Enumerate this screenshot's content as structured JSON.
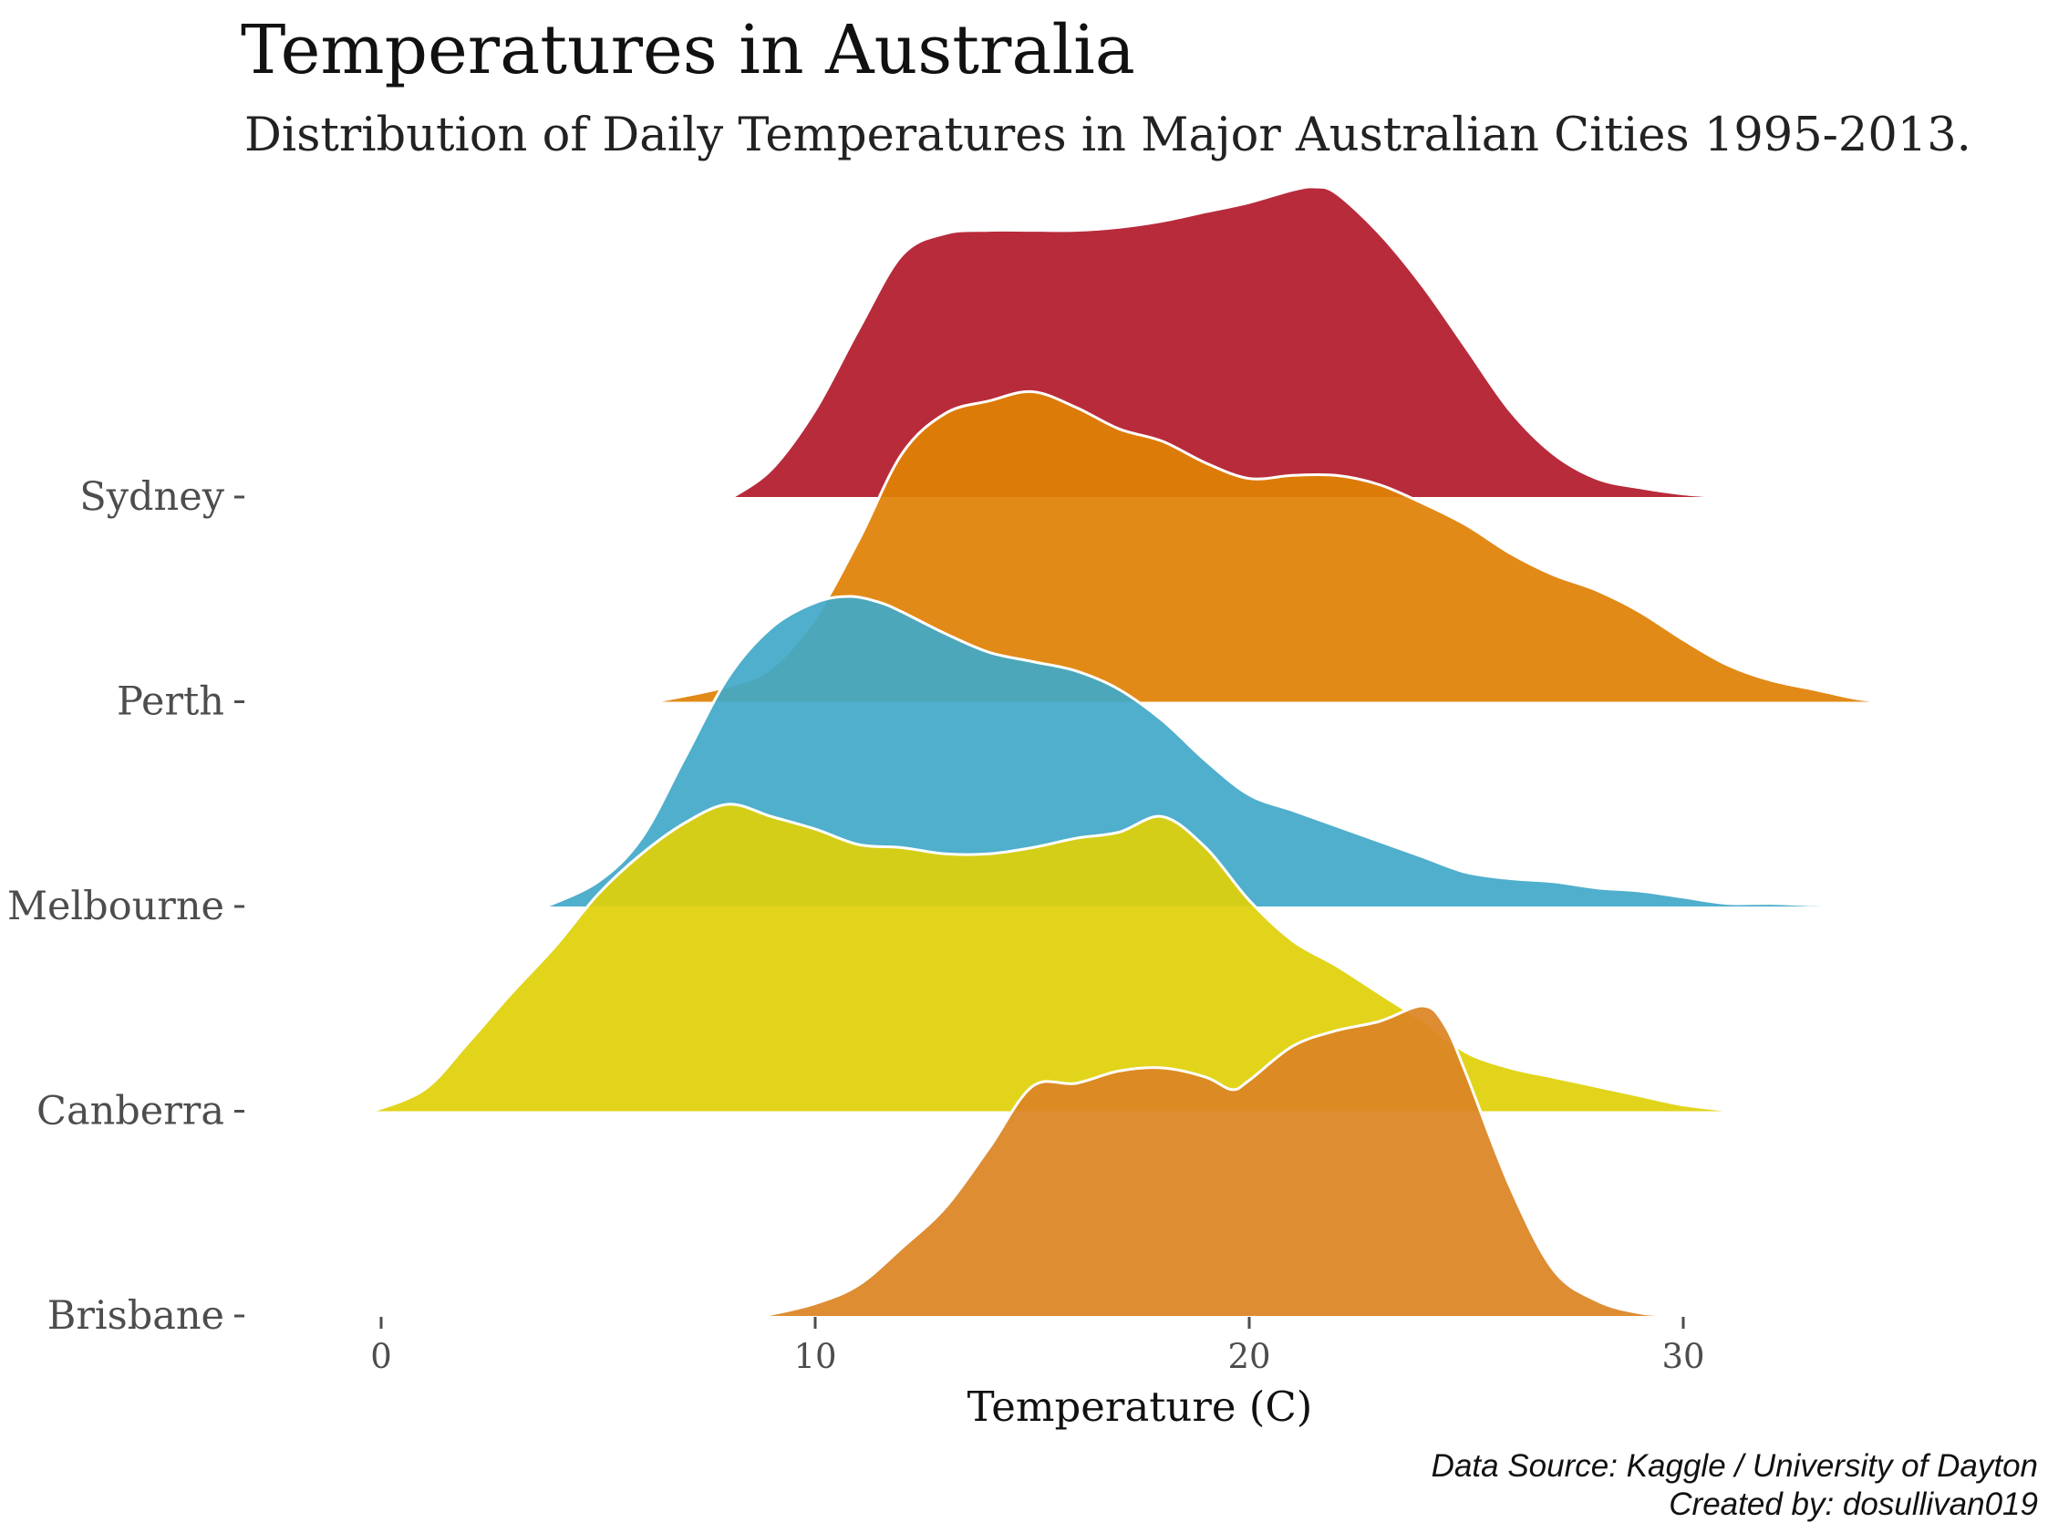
{
  "chart_data": {
    "type": "ridgeline",
    "title": "Temperatures in Australia",
    "subtitle": "Distribution of Daily Temperatures in Major Australian Cities 1995-2013.",
    "xlabel": "Temperature (C)",
    "ylabel": "",
    "xlim": [
      -3,
      38
    ],
    "xticks": [
      0,
      10,
      20,
      30
    ],
    "tick_labels": [
      "0",
      "10",
      "20",
      "30"
    ],
    "grid": false,
    "legend": "none",
    "caption": [
      "Data Source: Kaggle / University of Dayton",
      "Created by: dosullivan019"
    ],
    "categories": [
      "Sydney",
      "Perth",
      "Melbourne",
      "Canberra",
      "Brisbane"
    ],
    "series": [
      {
        "name": "Sydney",
        "color": "#b31b2c",
        "x": [
          8.1,
          9,
          10,
          11,
          12,
          13,
          14,
          15,
          16,
          17,
          18,
          19,
          20,
          21,
          21.5,
          22,
          23,
          24,
          25,
          26,
          27,
          28,
          29,
          30,
          31
        ],
        "density": [
          0,
          0.09,
          0.28,
          0.54,
          0.78,
          0.85,
          0.86,
          0.86,
          0.86,
          0.87,
          0.89,
          0.92,
          0.95,
          0.99,
          1.0,
          0.98,
          0.85,
          0.68,
          0.48,
          0.28,
          0.14,
          0.06,
          0.03,
          0.01,
          0
        ]
      },
      {
        "name": "Perth",
        "color": "#e08105",
        "x": [
          6.3,
          8,
          9,
          10,
          11,
          12,
          13,
          14,
          15,
          16,
          17,
          18,
          19,
          20,
          21,
          22,
          23,
          24,
          25,
          26,
          27,
          28,
          29,
          30,
          31,
          32,
          33,
          34,
          34.7
        ],
        "density": [
          0,
          0.05,
          0.11,
          0.27,
          0.52,
          0.8,
          0.93,
          0.97,
          1.0,
          0.95,
          0.88,
          0.84,
          0.77,
          0.72,
          0.73,
          0.73,
          0.7,
          0.64,
          0.57,
          0.48,
          0.41,
          0.36,
          0.29,
          0.2,
          0.12,
          0.07,
          0.04,
          0.01,
          0
        ]
      },
      {
        "name": "Melbourne",
        "color": "#42a9c8",
        "x": [
          3.8,
          5,
          6,
          7,
          8,
          9,
          10,
          10.8,
          11.5,
          12,
          13,
          14,
          15,
          16,
          17,
          18,
          19,
          20,
          21,
          22,
          23,
          24,
          25,
          26,
          27,
          28,
          29,
          30,
          31,
          32,
          33,
          34.5
        ],
        "density": [
          0,
          0.08,
          0.22,
          0.48,
          0.74,
          0.9,
          0.98,
          1.0,
          0.98,
          0.95,
          0.88,
          0.82,
          0.79,
          0.76,
          0.7,
          0.6,
          0.47,
          0.36,
          0.31,
          0.26,
          0.21,
          0.16,
          0.11,
          0.09,
          0.08,
          0.06,
          0.05,
          0.03,
          0.01,
          0.01,
          0.005,
          0
        ]
      },
      {
        "name": "Canberra",
        "color": "#e0d10a",
        "x": [
          -0.2,
          1,
          2,
          3,
          4,
          5,
          6,
          7,
          8,
          9,
          10,
          11,
          12,
          13,
          14,
          15,
          16,
          17,
          18,
          19,
          20,
          21,
          22,
          23,
          24,
          25,
          26,
          27,
          28,
          29,
          30,
          31.2
        ],
        "density": [
          0,
          0.07,
          0.22,
          0.38,
          0.53,
          0.7,
          0.83,
          0.93,
          0.99,
          0.95,
          0.91,
          0.86,
          0.85,
          0.83,
          0.83,
          0.85,
          0.88,
          0.9,
          0.95,
          0.85,
          0.68,
          0.55,
          0.47,
          0.38,
          0.29,
          0.19,
          0.14,
          0.11,
          0.08,
          0.05,
          0.02,
          0
        ]
      },
      {
        "name": "Brisbane",
        "color": "#dc8424",
        "x": [
          8.8,
          10,
          11,
          12,
          13,
          14,
          15,
          16,
          17,
          18,
          19,
          19.6,
          20,
          21,
          22,
          23,
          24,
          24.5,
          25,
          26,
          27,
          28,
          29,
          30
        ],
        "density": [
          0,
          0.04,
          0.1,
          0.22,
          0.35,
          0.54,
          0.74,
          0.75,
          0.79,
          0.8,
          0.77,
          0.73,
          0.76,
          0.87,
          0.92,
          0.95,
          1.0,
          0.94,
          0.78,
          0.42,
          0.15,
          0.05,
          0.01,
          0
        ]
      }
    ]
  }
}
